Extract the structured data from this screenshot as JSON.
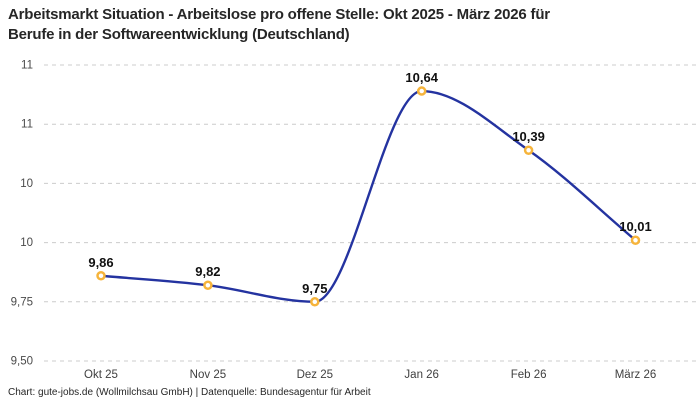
{
  "header": {
    "title_lines": [
      "Arbeitsmarkt Situation - Arbeitslose pro offene Stelle: Okt 2025 - März 2026 für",
      "Berufe in der Softwareentwicklung (Deutschland)"
    ]
  },
  "footer": {
    "attribution": "Chart: gute-jobs.de (Wollmilchsau GmbH) | Datenquelle: Bundesagentur für Arbeit"
  },
  "colors": {
    "line": "#2433A0",
    "marker_ring": "#F6B43B",
    "marker_fill": "#FFFFFF",
    "gridline": "#CCCCCC",
    "title_text": "#262626",
    "tick_text": "#4A4A4A",
    "data_label_text": "#101010"
  },
  "chart_data": {
    "type": "line",
    "title": "Arbeitsmarkt Situation - Arbeitslose pro offene Stelle: Okt 2025 - März 2026 für Berufe in der Softwareentwicklung (Deutschland)",
    "categories": [
      "Okt 25",
      "Nov 25",
      "Dez 25",
      "Jan 26",
      "Feb 26",
      "März 26"
    ],
    "values": [
      9.86,
      9.82,
      9.75,
      10.64,
      10.39,
      10.01
    ],
    "value_labels": [
      "9,86",
      "9,82",
      "9,75",
      "10,64",
      "10,39",
      "10,01"
    ],
    "y_ticks": [
      {
        "value": 10.75,
        "label": "11"
      },
      {
        "value": 10.5,
        "label": "11"
      },
      {
        "value": 10.25,
        "label": "10"
      },
      {
        "value": 10.0,
        "label": "10"
      },
      {
        "value": 9.75,
        "label": "9,75"
      },
      {
        "value": 9.5,
        "label": "9,50"
      }
    ],
    "ylim": [
      9.5,
      10.75
    ],
    "xlabel": "",
    "ylabel": "",
    "grid": "dashed-horizontal",
    "legend": "none",
    "curve": "monotone"
  }
}
